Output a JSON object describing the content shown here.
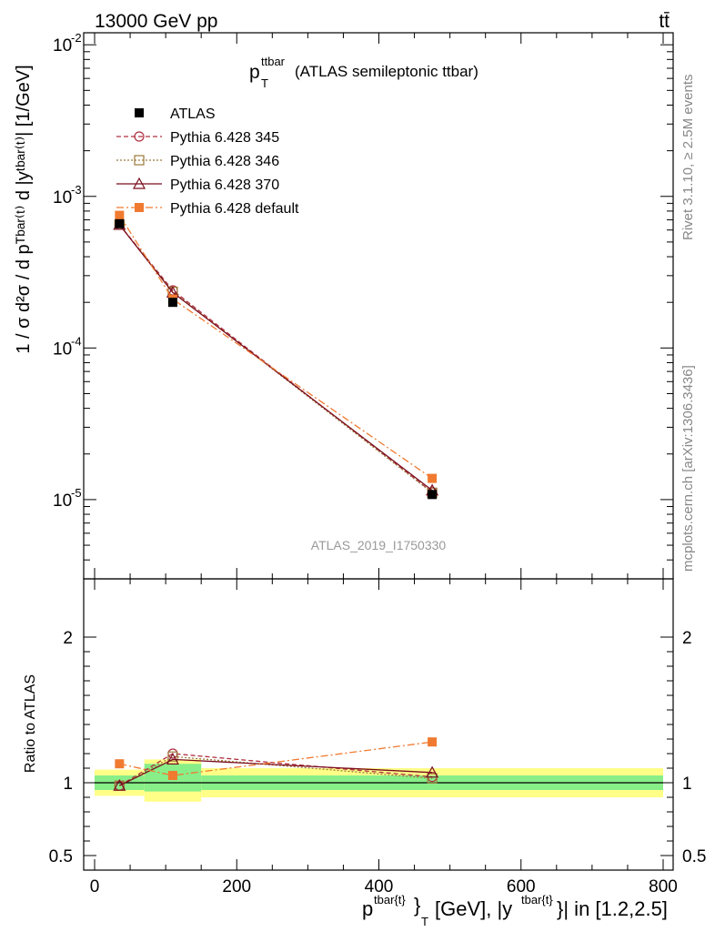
{
  "header": {
    "left": "13000 GeV pp",
    "right": "tt̄"
  },
  "side_labels": {
    "rivet": "Rivet 3.1.10, ≥ 2.5M events",
    "mcplots": "mcplots.cern.ch [arXiv:1306.3436]"
  },
  "main_plot": {
    "title_p": "p",
    "title_sup": "ttbar",
    "title_sub": "T",
    "title_rest": "(ATLAS semileptonic ttbar)",
    "ylabel": "1 / σ d²σ / d pᵀᵇᵃʳ⁽ᵗ⁾ d |yᵗᵇᵃʳ⁽ᵗ⁾| [1/GeV]",
    "watermark": "ATLAS_2019_I1750330"
  },
  "ratio_plot": {
    "ylabel": "Ratio to ATLAS"
  },
  "xaxis": {
    "label": "p^{tbar{t}}_T [GeV], |y^{tbar{t}}| in [1.2,2.5]"
  },
  "chart_data": [
    {
      "type": "line",
      "x": [
        35,
        110,
        475
      ],
      "xlim": [
        -20,
        810
      ],
      "ylim": [
        3e-06,
        0.012
      ],
      "yscale": "log",
      "xticks": [
        0,
        200,
        400,
        600,
        800
      ],
      "ytick_labels": [
        "10^-2",
        "10^-3",
        "10^-4",
        "10^-5"
      ],
      "legend_placement": "top-left",
      "series": [
        {
          "name": "ATLAS",
          "values": [
            0.00066,
            0.0002,
            1.08e-05
          ],
          "color": "#000000",
          "marker": "square-filled"
        },
        {
          "name": "Pythia 6.428 345",
          "values": [
            0.00065,
            0.00024,
            1.12e-05
          ],
          "color": "#b03040",
          "marker": "circle-open",
          "dash": "5,3"
        },
        {
          "name": "Pythia 6.428 346",
          "values": [
            0.00065,
            0.000235,
            1.11e-05
          ],
          "color": "#9b7a3a",
          "marker": "square-open",
          "dash": "2,2"
        },
        {
          "name": "Pythia 6.428 370",
          "values": [
            0.00065,
            0.000232,
            1.15e-05
          ],
          "color": "#7a0d1e",
          "marker": "triangle-open",
          "dash": ""
        },
        {
          "name": "Pythia 6.428 default",
          "values": [
            0.00075,
            0.00021,
            1.38e-05
          ],
          "color": "#f07a30",
          "marker": "square-filled",
          "dash": "8,3,2,3"
        }
      ]
    },
    {
      "type": "line",
      "x": [
        35,
        110,
        475
      ],
      "ylim": [
        0.4,
        2.4
      ],
      "yticks": [
        0.5,
        1,
        2
      ],
      "bands": [
        {
          "x0": 0,
          "x1": 70,
          "green": [
            0.95,
            1.05
          ],
          "yellow": [
            0.91,
            1.09
          ]
        },
        {
          "x0": 70,
          "x1": 150,
          "green": [
            0.94,
            1.13
          ],
          "yellow": [
            0.87,
            1.16
          ]
        },
        {
          "x0": 150,
          "x1": 800,
          "green": [
            0.95,
            1.05
          ],
          "yellow": [
            0.9,
            1.1
          ]
        }
      ],
      "series": [
        {
          "name": "Pythia 6.428 345",
          "values": [
            0.98,
            1.2,
            1.04
          ]
        },
        {
          "name": "Pythia 6.428 346",
          "values": [
            0.98,
            1.18,
            1.03
          ]
        },
        {
          "name": "Pythia 6.428 370",
          "values": [
            0.98,
            1.16,
            1.07
          ]
        },
        {
          "name": "Pythia 6.428 default",
          "values": [
            1.13,
            1.05,
            1.28
          ]
        }
      ]
    }
  ]
}
